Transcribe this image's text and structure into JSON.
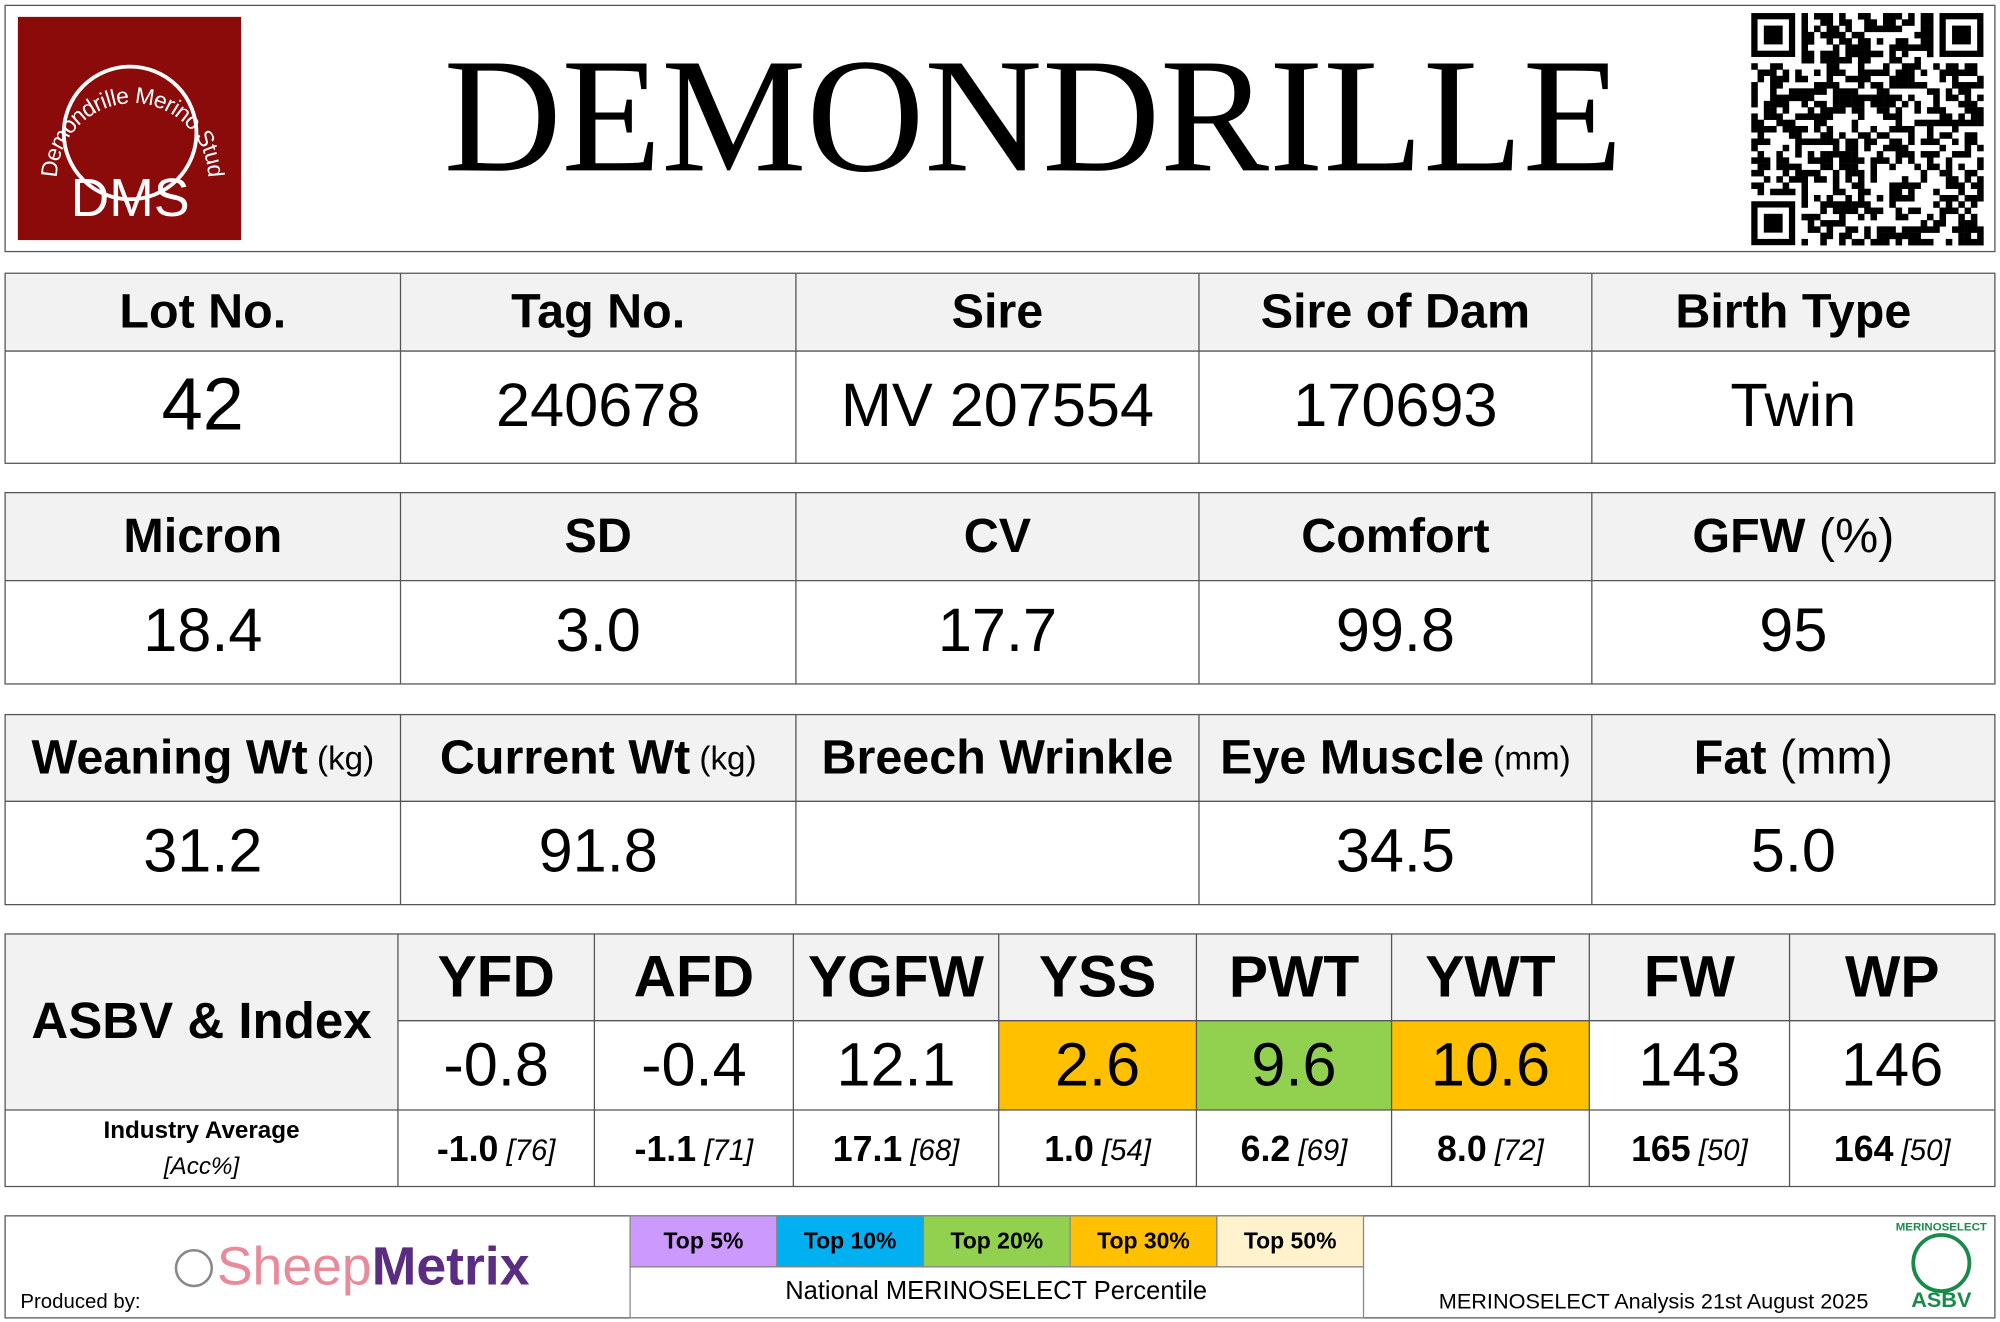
{
  "header": {
    "title": "DEMONDRILLE",
    "logo_text": "Demondrille Merino Stud",
    "logo_abbr": "DMS"
  },
  "animal": {
    "headers": [
      {
        "label": "Lot No."
      },
      {
        "label": "Tag No."
      },
      {
        "label": "Sire"
      },
      {
        "label": "Sire of Dam"
      },
      {
        "label": "Birth Type"
      }
    ],
    "values": [
      "42",
      "240678",
      "MV 207554",
      "170693",
      "Twin"
    ]
  },
  "wool": {
    "headers": [
      {
        "label": "Micron"
      },
      {
        "label": "SD"
      },
      {
        "label": "CV"
      },
      {
        "label": "Comfort"
      },
      {
        "label": "GFW",
        "unit": "(%)"
      }
    ],
    "values": [
      "18.4",
      "3.0",
      "17.7",
      "99.8",
      "95"
    ]
  },
  "body": {
    "headers": [
      {
        "label": "Weaning Wt",
        "unit": "(kg)"
      },
      {
        "label": "Current Wt",
        "unit": "(kg)"
      },
      {
        "label": "Breech Wrinkle"
      },
      {
        "label": "Eye Muscle",
        "unit": "(mm)"
      },
      {
        "label": "Fat",
        "unit": "(mm)"
      }
    ],
    "values": [
      "31.2",
      "91.8",
      null,
      "34.5",
      "5.0"
    ]
  },
  "asbv": {
    "label": "ASBV & Index",
    "traits": [
      "YFD",
      "AFD",
      "YGFW",
      "YSS",
      "PWT",
      "YWT",
      "FW",
      "WP"
    ],
    "values": [
      "-0.8",
      "-0.4",
      "12.1",
      "2.6",
      "9.6",
      "10.6",
      "143",
      "146"
    ],
    "highlight": [
      null,
      null,
      null,
      "#ffc000",
      "#92d050",
      "#ffc000",
      null,
      null
    ],
    "industry_label": "Industry Average",
    "accuracy_label": "[Acc%]",
    "industry": [
      {
        "avg": "-1.0",
        "acc": "[76]"
      },
      {
        "avg": "-1.1",
        "acc": "[71]"
      },
      {
        "avg": "17.1",
        "acc": "[68]"
      },
      {
        "avg": "1.0",
        "acc": "[54]"
      },
      {
        "avg": "6.2",
        "acc": "[69]"
      },
      {
        "avg": "8.0",
        "acc": "[72]"
      },
      {
        "avg": "165",
        "acc": "[50]"
      },
      {
        "avg": "164",
        "acc": "[50]"
      }
    ]
  },
  "footer": {
    "produced_by": "Produced by:",
    "brand": [
      "Sheep",
      "Metrix"
    ],
    "legend": [
      {
        "label": "Top 5%",
        "color": "#cc99ff"
      },
      {
        "label": "Top 10%",
        "color": "#00b0f0"
      },
      {
        "label": "Top 20%",
        "color": "#92d050"
      },
      {
        "label": "Top 30%",
        "color": "#ffc000"
      },
      {
        "label": "Top 50%",
        "color": "#fff2cc"
      }
    ],
    "legend_title": "National MERINOSELECT Percentile",
    "analysis": "MERINOSELECT Analysis 21st August 2025",
    "badge": [
      "MERINOSELECT",
      "ASBV"
    ]
  }
}
